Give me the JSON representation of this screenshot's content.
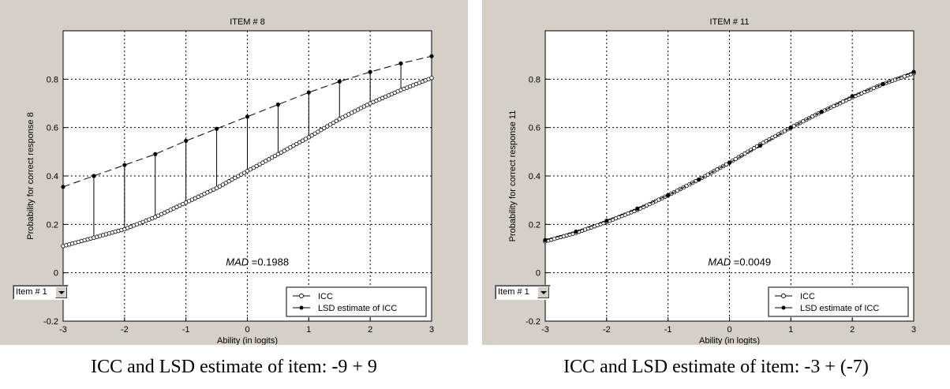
{
  "chart_data": [
    {
      "type": "line",
      "title": "ITEM # 8",
      "xlabel": "Ability (in logits)",
      "ylabel": "Probability for correct response 8",
      "xlim": [
        -3,
        3
      ],
      "ylim": [
        -0.2,
        1.0
      ],
      "xticks": [
        -3,
        -2,
        -1,
        0,
        1,
        2,
        3
      ],
      "yticks": [
        -0.2,
        0,
        0.2,
        0.4,
        0.6,
        0.8
      ],
      "grid": true,
      "legend_position": "bottom-right",
      "annotation": {
        "label": "MAD",
        "value": "=0.1988"
      },
      "series": [
        {
          "name": "ICC",
          "marker": "open-circle",
          "line": "solid",
          "x": [
            -3,
            -2.5,
            -2,
            -1.5,
            -1,
            -0.5,
            0,
            0.5,
            1,
            1.5,
            2,
            2.5,
            3
          ],
          "y": [
            0.11,
            0.145,
            0.18,
            0.23,
            0.29,
            0.35,
            0.42,
            0.49,
            0.56,
            0.635,
            0.7,
            0.755,
            0.805
          ]
        },
        {
          "name": "LSD estimate of ICC",
          "marker": "dot",
          "line": "dashed",
          "x": [
            -3,
            -2.5,
            -2,
            -1.5,
            -1,
            -0.5,
            0,
            0.5,
            1,
            1.5,
            2,
            2.5,
            3
          ],
          "y": [
            0.355,
            0.4,
            0.445,
            0.49,
            0.545,
            0.595,
            0.645,
            0.695,
            0.745,
            0.79,
            0.83,
            0.865,
            0.895
          ]
        }
      ],
      "stems": true
    },
    {
      "type": "line",
      "title": "ITEM # 11",
      "xlabel": "Ability (in logits)",
      "ylabel": "Probability for correct response 11",
      "xlim": [
        -3,
        3
      ],
      "ylim": [
        -0.2,
        1.0
      ],
      "xticks": [
        -3,
        -2,
        -1,
        0,
        1,
        2,
        3
      ],
      "yticks": [
        -0.2,
        0,
        0.2,
        0.4,
        0.6,
        0.8
      ],
      "grid": true,
      "legend_position": "bottom-right",
      "annotation": {
        "label": "MAD",
        "value": "=0.0049"
      },
      "series": [
        {
          "name": "ICC",
          "marker": "open-circle",
          "line": "solid",
          "x": [
            -3,
            -2.5,
            -2,
            -1.5,
            -1,
            -0.5,
            0,
            0.5,
            1,
            1.5,
            2,
            2.5,
            3
          ],
          "y": [
            0.13,
            0.165,
            0.21,
            0.26,
            0.32,
            0.385,
            0.455,
            0.53,
            0.6,
            0.665,
            0.725,
            0.78,
            0.825
          ]
        },
        {
          "name": "LSD estimate of ICC",
          "marker": "dot",
          "line": "dashed",
          "x": [
            -3,
            -2.5,
            -2,
            -1.5,
            -1,
            -0.5,
            0,
            0.5,
            1,
            1.5,
            2,
            2.5,
            3
          ],
          "y": [
            0.135,
            0.17,
            0.215,
            0.265,
            0.32,
            0.385,
            0.455,
            0.525,
            0.6,
            0.665,
            0.73,
            0.78,
            0.83
          ]
        }
      ],
      "stems": false
    }
  ],
  "controls": {
    "item_select": "Item # 1"
  },
  "captions": {
    "left": "ICC and LSD estimate of item: -9 + 9",
    "right": "ICC and LSD estimate of item: -3 + (-7)"
  }
}
